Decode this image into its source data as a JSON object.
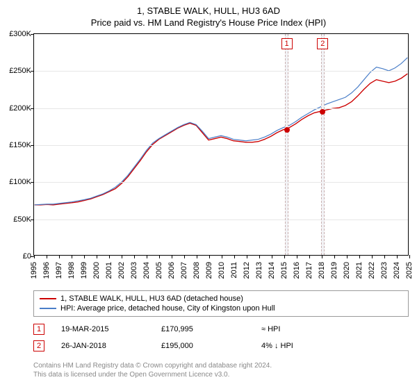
{
  "titles": {
    "line1": "1, STABLE WALK, HULL, HU3 6AD",
    "line2": "Price paid vs. HM Land Registry's House Price Index (HPI)"
  },
  "chart": {
    "type": "line",
    "x_start_year": 1995,
    "x_end_year": 2025,
    "x_tick_years": [
      1995,
      1996,
      1997,
      1998,
      1999,
      2000,
      2001,
      2002,
      2003,
      2004,
      2005,
      2006,
      2007,
      2008,
      2009,
      2010,
      2011,
      2012,
      2013,
      2014,
      2015,
      2016,
      2017,
      2018,
      2019,
      2020,
      2021,
      2022,
      2023,
      2024,
      2025
    ],
    "y_min": 0,
    "y_max": 300000,
    "y_ticks": [
      0,
      50000,
      100000,
      150000,
      200000,
      250000,
      300000
    ],
    "y_tick_labels": [
      "£0",
      "£50K",
      "£100K",
      "£150K",
      "£200K",
      "£250K",
      "£300K"
    ],
    "grid_color": "#e6e6e6",
    "background_color": "#ffffff",
    "series": [
      {
        "name": "price_paid",
        "color": "#cc0000",
        "width": 1.4,
        "points": [
          [
            1995.0,
            68000
          ],
          [
            1995.5,
            68000
          ],
          [
            1996.0,
            68500
          ],
          [
            1996.5,
            68000
          ],
          [
            1997.0,
            69000
          ],
          [
            1997.5,
            70000
          ],
          [
            1998.0,
            71000
          ],
          [
            1998.5,
            72000
          ],
          [
            1999.0,
            74000
          ],
          [
            1999.5,
            76000
          ],
          [
            2000.0,
            79000
          ],
          [
            2000.5,
            82000
          ],
          [
            2001.0,
            86000
          ],
          [
            2001.5,
            90000
          ],
          [
            2002.0,
            97000
          ],
          [
            2002.5,
            106000
          ],
          [
            2003.0,
            117000
          ],
          [
            2003.5,
            128000
          ],
          [
            2004.0,
            140000
          ],
          [
            2004.5,
            150000
          ],
          [
            2005.0,
            157000
          ],
          [
            2005.5,
            162000
          ],
          [
            2006.0,
            167000
          ],
          [
            2006.5,
            172000
          ],
          [
            2007.0,
            176000
          ],
          [
            2007.5,
            179000
          ],
          [
            2008.0,
            176000
          ],
          [
            2008.5,
            166000
          ],
          [
            2009.0,
            156000
          ],
          [
            2009.5,
            158000
          ],
          [
            2010.0,
            160000
          ],
          [
            2010.5,
            158000
          ],
          [
            2011.0,
            155000
          ],
          [
            2011.5,
            154000
          ],
          [
            2012.0,
            153000
          ],
          [
            2012.5,
            153000
          ],
          [
            2013.0,
            154000
          ],
          [
            2013.5,
            157000
          ],
          [
            2014.0,
            161000
          ],
          [
            2014.5,
            166000
          ],
          [
            2015.0,
            170000
          ],
          [
            2015.2,
            170995
          ],
          [
            2015.5,
            173000
          ],
          [
            2016.0,
            178000
          ],
          [
            2016.5,
            184000
          ],
          [
            2017.0,
            189000
          ],
          [
            2017.5,
            193000
          ],
          [
            2018.0,
            195000
          ],
          [
            2018.5,
            197000
          ],
          [
            2019.0,
            199000
          ],
          [
            2019.5,
            200000
          ],
          [
            2020.0,
            203000
          ],
          [
            2020.5,
            208000
          ],
          [
            2021.0,
            216000
          ],
          [
            2021.5,
            225000
          ],
          [
            2022.0,
            233000
          ],
          [
            2022.5,
            238000
          ],
          [
            2023.0,
            236000
          ],
          [
            2023.5,
            234000
          ],
          [
            2024.0,
            236000
          ],
          [
            2024.5,
            240000
          ],
          [
            2025.0,
            246000
          ]
        ]
      },
      {
        "name": "hpi",
        "color": "#4a7ec8",
        "width": 1.2,
        "points": [
          [
            1995.0,
            68000
          ],
          [
            1995.5,
            68500
          ],
          [
            1996.0,
            69000
          ],
          [
            1996.5,
            69000
          ],
          [
            1997.0,
            70000
          ],
          [
            1997.5,
            71000
          ],
          [
            1998.0,
            72000
          ],
          [
            1998.5,
            73500
          ],
          [
            1999.0,
            75000
          ],
          [
            1999.5,
            77000
          ],
          [
            2000.0,
            80000
          ],
          [
            2000.5,
            83000
          ],
          [
            2001.0,
            87000
          ],
          [
            2001.5,
            92000
          ],
          [
            2002.0,
            99000
          ],
          [
            2002.5,
            108000
          ],
          [
            2003.0,
            119000
          ],
          [
            2003.5,
            130000
          ],
          [
            2004.0,
            142000
          ],
          [
            2004.5,
            152000
          ],
          [
            2005.0,
            158000
          ],
          [
            2005.5,
            163000
          ],
          [
            2006.0,
            168000
          ],
          [
            2006.5,
            173000
          ],
          [
            2007.0,
            177000
          ],
          [
            2007.5,
            180000
          ],
          [
            2008.0,
            177000
          ],
          [
            2008.5,
            168000
          ],
          [
            2009.0,
            158000
          ],
          [
            2009.5,
            160000
          ],
          [
            2010.0,
            162000
          ],
          [
            2010.5,
            160000
          ],
          [
            2011.0,
            157000
          ],
          [
            2011.5,
            156000
          ],
          [
            2012.0,
            155000
          ],
          [
            2012.5,
            156000
          ],
          [
            2013.0,
            157000
          ],
          [
            2013.5,
            160000
          ],
          [
            2014.0,
            164000
          ],
          [
            2014.5,
            169000
          ],
          [
            2015.0,
            173000
          ],
          [
            2015.5,
            176000
          ],
          [
            2016.0,
            181000
          ],
          [
            2016.5,
            187000
          ],
          [
            2017.0,
            192000
          ],
          [
            2017.5,
            197000
          ],
          [
            2018.0,
            201000
          ],
          [
            2018.5,
            205000
          ],
          [
            2019.0,
            208000
          ],
          [
            2019.5,
            211000
          ],
          [
            2020.0,
            214000
          ],
          [
            2020.5,
            220000
          ],
          [
            2021.0,
            228000
          ],
          [
            2021.5,
            238000
          ],
          [
            2022.0,
            248000
          ],
          [
            2022.5,
            255000
          ],
          [
            2023.0,
            253000
          ],
          [
            2023.5,
            250000
          ],
          [
            2024.0,
            254000
          ],
          [
            2024.5,
            260000
          ],
          [
            2025.0,
            268000
          ]
        ]
      }
    ],
    "markers": [
      {
        "id": "1",
        "year": 2015.2,
        "value": 170995,
        "band_width_years": 0.3,
        "dot_color": "#cc0000"
      },
      {
        "id": "2",
        "year": 2018.07,
        "value": 195000,
        "band_width_years": 0.3,
        "dot_color": "#cc0000"
      }
    ]
  },
  "legend": {
    "items": [
      {
        "color": "#cc0000",
        "label": "1, STABLE WALK, HULL, HU3 6AD (detached house)"
      },
      {
        "color": "#4a7ec8",
        "label": "HPI: Average price, detached house, City of Kingston upon Hull"
      }
    ]
  },
  "sales_table": {
    "rows": [
      {
        "id": "1",
        "date": "19-MAR-2015",
        "price": "£170,995",
        "delta": "≈ HPI"
      },
      {
        "id": "2",
        "date": "26-JAN-2018",
        "price": "£195,000",
        "delta": "4% ↓ HPI"
      }
    ]
  },
  "footer": {
    "line1": "Contains HM Land Registry data © Crown copyright and database right 2024.",
    "line2": "This data is licensed under the Open Government Licence v3.0."
  }
}
